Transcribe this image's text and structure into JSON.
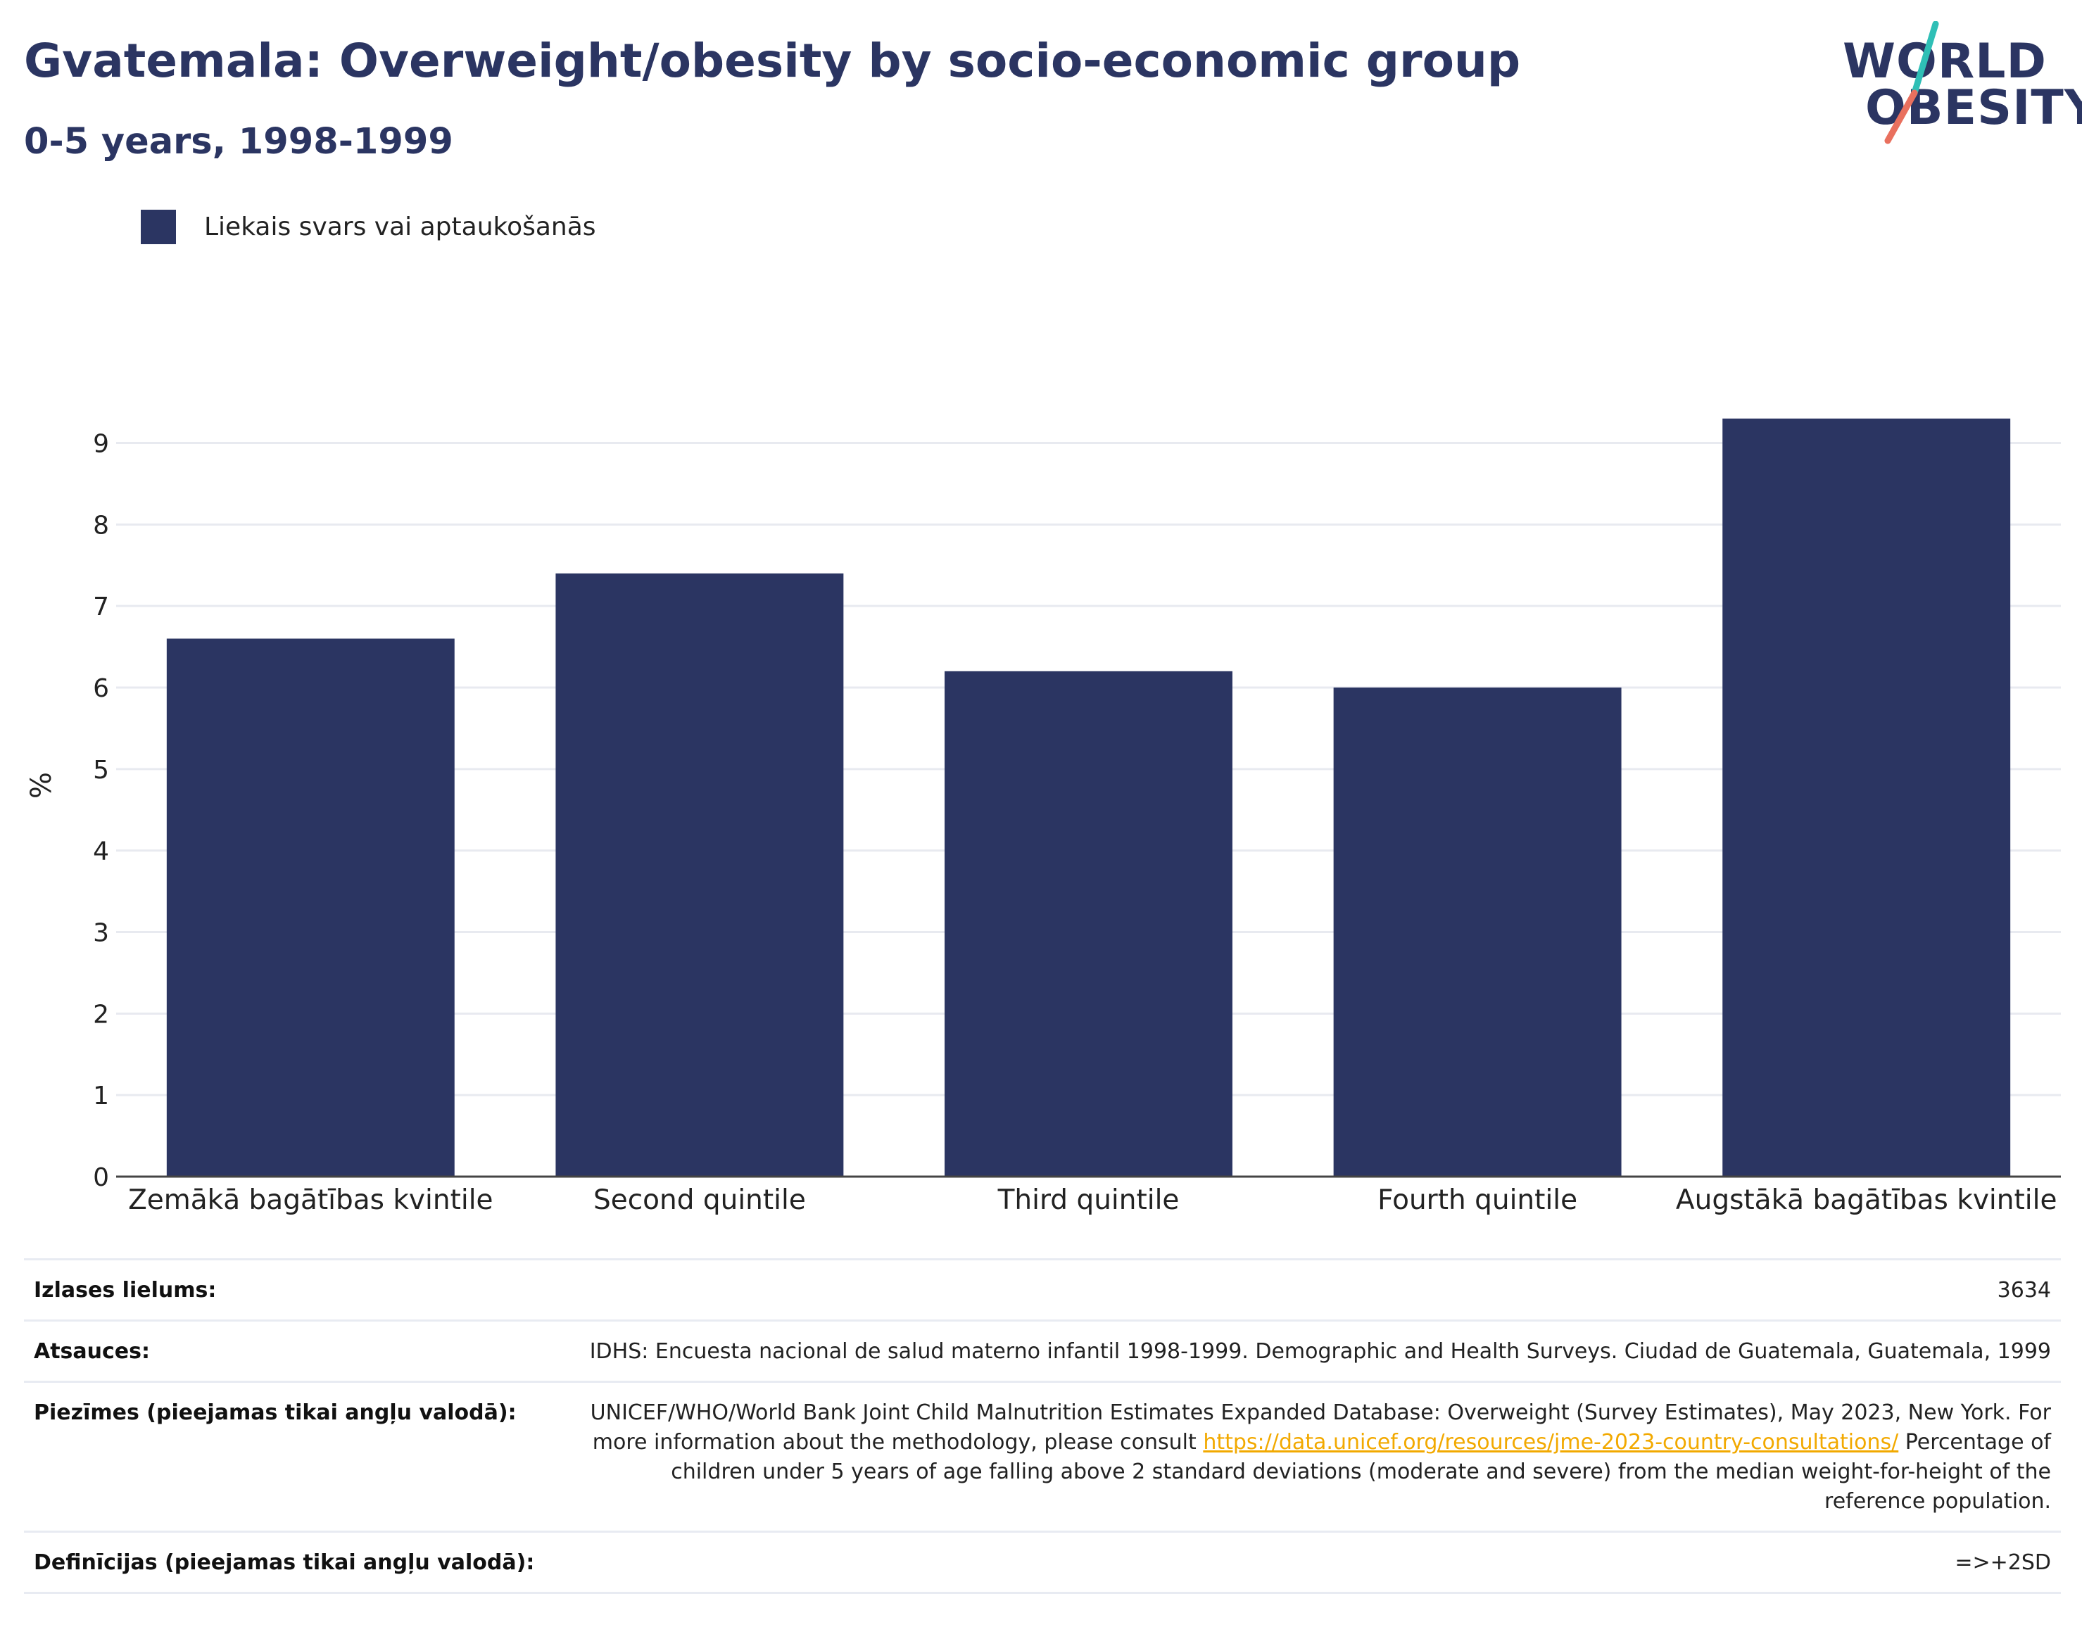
{
  "header": {
    "title": "Gvatemala: Overweight/obesity by socio-economic group",
    "subtitle": "0-5 years, 1998-1999"
  },
  "logo": {
    "line1": "WORLD",
    "line2": "OBESITY",
    "accent_colors": [
      "#2fbfb6",
      "#e9705e"
    ]
  },
  "legend": {
    "label": "Liekais svars vai aptaukošanās",
    "color": "#2b3562"
  },
  "chart_data": {
    "type": "bar",
    "categories": [
      "Zemākā bagātības kvintile",
      "Second quintile",
      "Third quintile",
      "Fourth quintile",
      "Augstākā bagātības kvintile"
    ],
    "series": [
      {
        "name": "Liekais svars vai aptaukošanās",
        "values": [
          6.6,
          7.4,
          6.2,
          6.0,
          9.3
        ]
      }
    ],
    "ylabel": "%",
    "ylim": [
      0,
      9.6
    ],
    "yticks": [
      0,
      1,
      2,
      3,
      4,
      5,
      6,
      7,
      8,
      9
    ],
    "grid": true,
    "legend_position": "top-left",
    "bar_color": "#2b3562"
  },
  "meta": {
    "sample_label": "Izlases lielums:",
    "sample_value": "3634",
    "sources_label": "Atsauces:",
    "sources_value": "IDHS: Encuesta nacional de salud materno infantil 1998-1999. Demographic and Health Surveys. Ciudad de Guatemala, Guatemala, 1999",
    "notes_label": "Piezīmes (pieejamas tikai angļu valodā):",
    "notes_text1": "UNICEF/WHO/World Bank Joint Child Malnutrition Estimates Expanded Database: Overweight (Survey Estimates), May 2023, New York. For more information about the methodology, please consult ",
    "notes_link": "https://data.unicef.org/resources/jme-2023-country-consultations/",
    "notes_text2": " Percentage of children under 5 years of age falling above 2 standard deviations (moderate and severe) from the median weight-for-height of the reference population.",
    "definitions_label": "Definīcijas (pieejamas tikai angļu valodā):",
    "definitions_value": "=>+2SD"
  }
}
